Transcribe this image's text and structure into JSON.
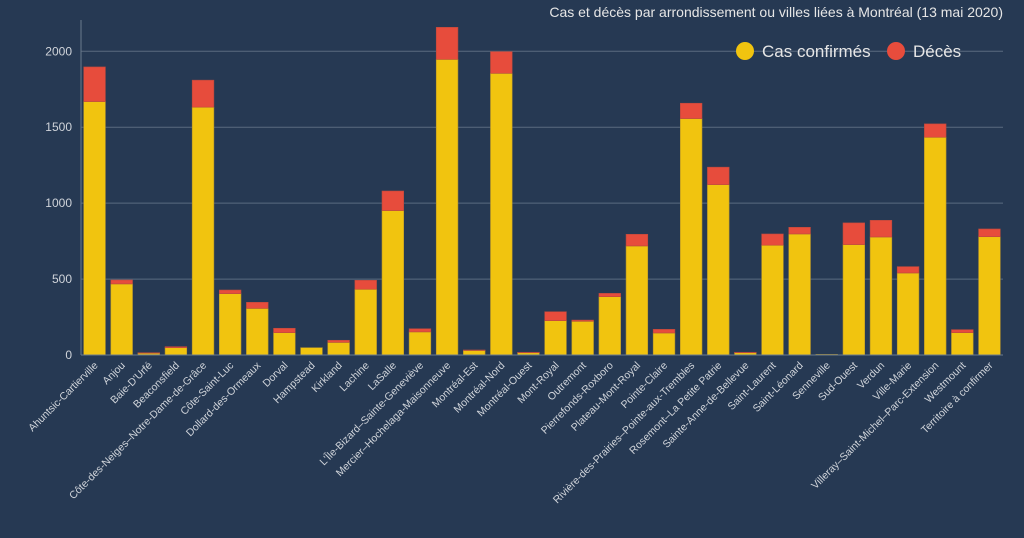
{
  "chart_data": {
    "type": "bar",
    "stacked": true,
    "title": "Cas et décès par arrondissement ou villes liées à Montréal (13 mai 2020)",
    "xlabel": "",
    "ylabel": "",
    "ylim": [
      0,
      2200
    ],
    "yticks": [
      0,
      500,
      1000,
      1500,
      2000
    ],
    "grid": true,
    "legend_position": "top-right",
    "categories": [
      "Ahuntsic-Cartierville",
      "Anjou",
      "Baie-D'Urfé",
      "Beaconsfield",
      "Côte-des-Neiges–Notre-Dame-de-Grâce",
      "Côte-Saint-Luc",
      "Dollard-des-Ormeaux",
      "Dorval",
      "Hampstead",
      "Kirkland",
      "Lachine",
      "LaSalle",
      "L'Île-Bizard–Sainte-Geneviève",
      "Mercier–Hochelaga-Maisonneuve",
      "Montréal-Est",
      "Montréal-Nord",
      "Montréal-Ouest",
      "Mont-Royal",
      "Outremont",
      "Pierrefonds-Roxboro",
      "Plateau-Mont-Royal",
      "Pointe-Claire",
      "Rivière-des-Prairies–Pointe-aux-Trembles",
      "Rosemont–La Petite Patrie",
      "Sainte-Anne-de-Bellevue",
      "Saint-Laurent",
      "Saint-Léonard",
      "Senneville",
      "Sud-Ouest",
      "Verdun",
      "Ville-Marie",
      "Villeray–Saint-Michel–Parc-Extension",
      "Westmount",
      "Territoire à confirmer"
    ],
    "series": [
      {
        "name": "Cas confirmés",
        "color": "#f1c40f",
        "values": [
          1669,
          468,
          13,
          48,
          1632,
          404,
          307,
          147,
          48,
          83,
          433,
          951,
          152,
          1947,
          30,
          1855,
          16,
          226,
          222,
          384,
          718,
          145,
          1557,
          1122,
          17,
          723,
          797,
          4,
          727,
          777,
          540,
          1434,
          147,
          779
        ]
      },
      {
        "name": "Décès",
        "color": "#e74c3c",
        "values": [
          228,
          26,
          2,
          7,
          178,
          24,
          40,
          29,
          0,
          14,
          59,
          129,
          21,
          211,
          3,
          143,
          2,
          59,
          8,
          22,
          77,
          24,
          101,
          115,
          1,
          74,
          44,
          0,
          143,
          110,
          42,
          88,
          20,
          51
        ]
      }
    ]
  },
  "legend": {
    "items": [
      {
        "label": "Cas confirmés",
        "color": "#f1c40f"
      },
      {
        "label": "Décès",
        "color": "#e74c3c"
      }
    ]
  }
}
